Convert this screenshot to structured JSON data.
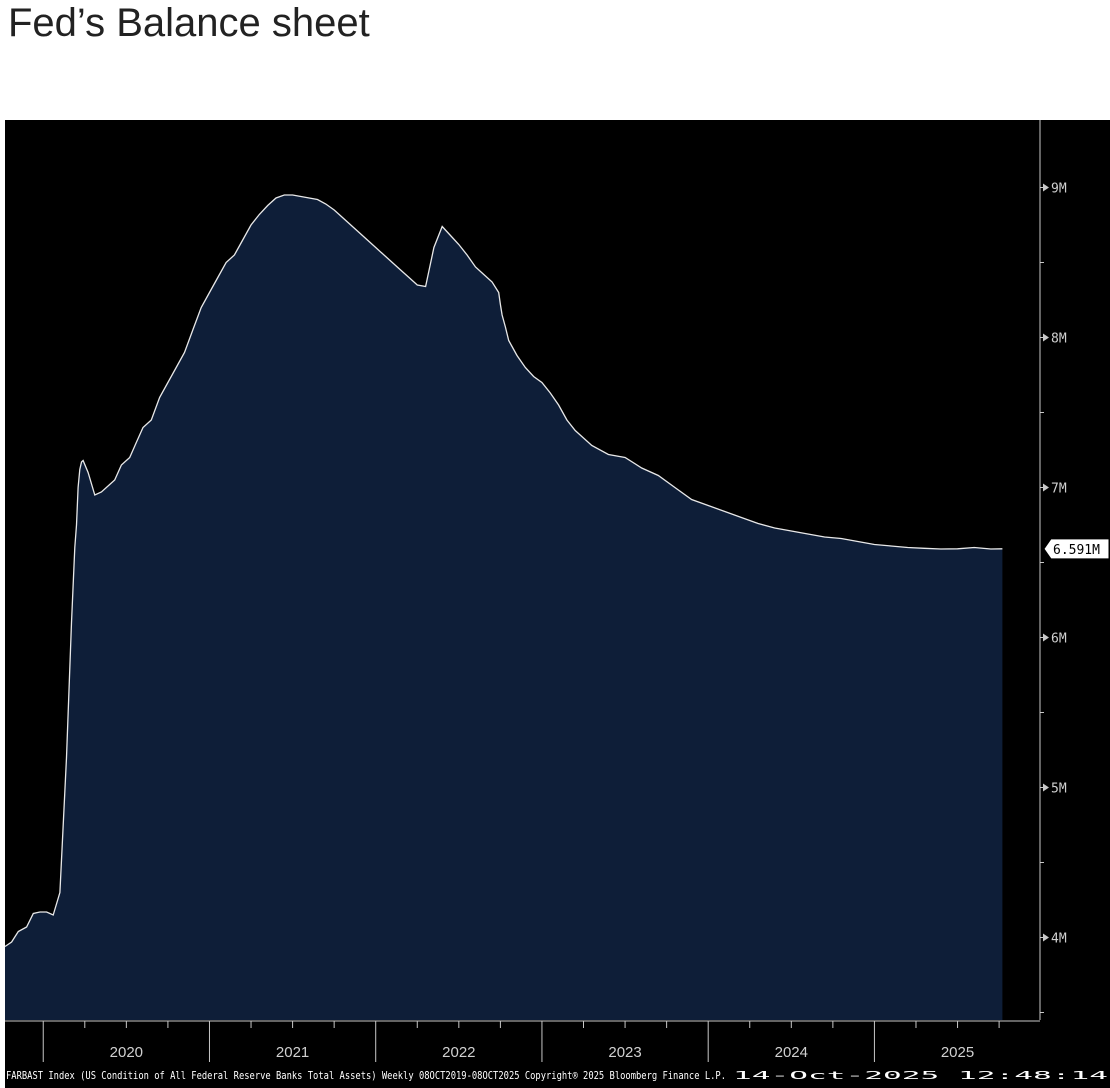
{
  "title": "Fed’s Balance sheet",
  "chart_data": {
    "type": "area",
    "ticker_label": "FARBAST Index (US Condition of All Federal Reserve Banks Total Assets) Weekly 08OCT2019-08OCT2025 Copyright® 2025 Bloomberg Finance L.P.",
    "footer_right": "14-Oct-2025 12:48:14",
    "last_value_label": "6.591M",
    "x_tick_labels": [
      "2020",
      "2021",
      "2022",
      "2023",
      "2024",
      "2025"
    ],
    "y_tick_labels": [
      "4M",
      "5M",
      "6M",
      "7M",
      "8M",
      "9M"
    ],
    "ylim": [
      3.45,
      9.45
    ],
    "xlim": [
      2019.77,
      2025.99
    ],
    "colors": {
      "fill": "#0e1e38",
      "line": "#e8e8e8",
      "background": "#000000",
      "axis": "#c8c8c8"
    },
    "x": [
      2019.77,
      2019.81,
      2019.85,
      2019.9,
      2019.94,
      2019.98,
      2020.02,
      2020.06,
      2020.1,
      2020.14,
      2020.17,
      2020.19,
      2020.2,
      2020.21,
      2020.22,
      2020.23,
      2020.24,
      2020.27,
      2020.31,
      2020.35,
      2020.4,
      2020.43,
      2020.47,
      2020.52,
      2020.56,
      2020.6,
      2020.65,
      2020.7,
      2020.75,
      2020.8,
      2020.85,
      2020.9,
      2020.95,
      2021.0,
      2021.05,
      2021.1,
      2021.15,
      2021.2,
      2021.25,
      2021.3,
      2021.35,
      2021.4,
      2021.45,
      2021.5,
      2021.55,
      2021.6,
      2021.65,
      2021.7,
      2021.75,
      2021.8,
      2021.85,
      2021.9,
      2021.95,
      2022.0,
      2022.05,
      2022.1,
      2022.15,
      2022.2,
      2022.25,
      2022.3,
      2022.35,
      2022.4,
      2022.45,
      2022.5,
      2022.55,
      2022.6,
      2022.65,
      2022.7,
      2022.74,
      2022.75,
      2022.76,
      2022.78,
      2022.8,
      2022.85,
      2022.9,
      2022.95,
      2023.0,
      2023.05,
      2023.1,
      2023.15,
      2023.2,
      2023.3,
      2023.4,
      2023.5,
      2023.6,
      2023.7,
      2023.8,
      2023.9,
      2024.0,
      2024.1,
      2024.2,
      2024.3,
      2024.4,
      2024.5,
      2024.6,
      2024.7,
      2024.8,
      2024.9,
      2025.0,
      2025.1,
      2025.2,
      2025.3,
      2025.4,
      2025.5,
      2025.6,
      2025.7,
      2025.77
    ],
    "values": [
      3.94,
      3.97,
      4.04,
      4.07,
      4.16,
      4.17,
      4.17,
      4.15,
      4.3,
      5.2,
      6.1,
      6.6,
      6.75,
      7.0,
      7.12,
      7.17,
      7.18,
      7.1,
      6.95,
      6.97,
      7.02,
      7.05,
      7.15,
      7.2,
      7.3,
      7.4,
      7.45,
      7.6,
      7.7,
      7.8,
      7.9,
      8.05,
      8.2,
      8.3,
      8.4,
      8.5,
      8.55,
      8.65,
      8.75,
      8.82,
      8.88,
      8.93,
      8.95,
      8.95,
      8.94,
      8.93,
      8.92,
      8.89,
      8.85,
      8.8,
      8.75,
      8.7,
      8.65,
      8.6,
      8.55,
      8.5,
      8.45,
      8.4,
      8.35,
      8.34,
      8.6,
      8.74,
      8.68,
      8.62,
      8.55,
      8.47,
      8.42,
      8.37,
      8.3,
      8.22,
      8.15,
      8.07,
      7.98,
      7.88,
      7.8,
      7.74,
      7.7,
      7.63,
      7.55,
      7.45,
      7.38,
      7.28,
      7.22,
      7.2,
      7.13,
      7.08,
      7.0,
      6.92,
      6.88,
      6.84,
      6.8,
      6.76,
      6.73,
      6.71,
      6.69,
      6.67,
      6.66,
      6.64,
      6.62,
      6.61,
      6.6,
      6.595,
      6.59,
      6.591,
      6.6,
      6.59,
      6.591
    ]
  }
}
